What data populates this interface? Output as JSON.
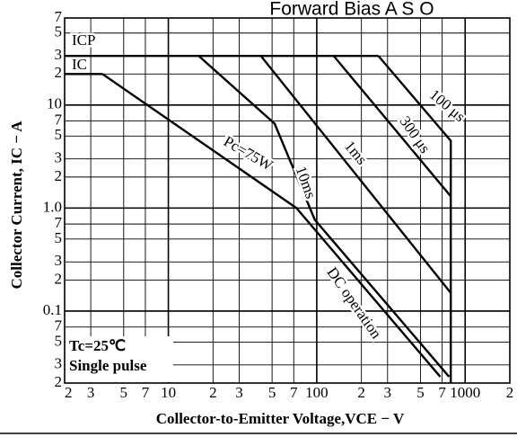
{
  "chart_data": {
    "type": "line",
    "title": "Forward Bias A S O",
    "xlabel": "Collector-to-Emitter Voltage,VCE − V",
    "ylabel": "Collector Current, IC − A",
    "xscale": "log",
    "yscale": "log",
    "grid": true,
    "color": "#000000",
    "xlim": [
      2,
      2000
    ],
    "ylim": [
      0.02,
      70
    ],
    "xticks": [
      2,
      3,
      5,
      7,
      10,
      {
        "value": 20,
        "label": "2"
      },
      {
        "value": 30,
        "label": "3"
      },
      {
        "value": 50,
        "label": "5"
      },
      {
        "value": 70,
        "label": "7"
      },
      100,
      {
        "value": 200,
        "label": "2"
      },
      {
        "value": 300,
        "label": "3"
      },
      {
        "value": 500,
        "label": "5"
      },
      {
        "value": 700,
        "label": "7"
      },
      1000,
      {
        "value": 2000,
        "label": "2"
      }
    ],
    "yticks": [
      {
        "value": 0.02,
        "label": "2"
      },
      {
        "value": 0.03,
        "label": "3"
      },
      {
        "value": 0.05,
        "label": "5"
      },
      {
        "value": 0.07,
        "label": "7"
      },
      0.1,
      {
        "value": 0.2,
        "label": "2"
      },
      {
        "value": 0.3,
        "label": "3"
      },
      {
        "value": 0.5,
        "label": "5"
      },
      {
        "value": 0.7,
        "label": "7"
      },
      {
        "value": 1,
        "label": "1.0"
      },
      2,
      3,
      5,
      7,
      10,
      {
        "value": 20,
        "label": "2"
      },
      {
        "value": 30,
        "label": "3"
      },
      {
        "value": 50,
        "label": "5"
      },
      {
        "value": 70,
        "label": "7"
      }
    ],
    "series": [
      {
        "name": "ICP",
        "color": "#000000",
        "x": [
          2,
          260
        ],
        "values": [
          30,
          30
        ]
      },
      {
        "name": "100 μs",
        "color": "#000000",
        "x": [
          260,
          800,
          800
        ],
        "values": [
          30,
          4.5,
          0.02
        ]
      },
      {
        "name": "300 μs",
        "color": "#000000",
        "x": [
          130,
          800
        ],
        "values": [
          30,
          1.3
        ]
      },
      {
        "name": "1ms",
        "color": "#000000",
        "x": [
          42,
          800
        ],
        "values": [
          30,
          0.15
        ]
      },
      {
        "name": "10ms",
        "color": "#000000",
        "x": [
          16,
          52,
          97,
          780
        ],
        "values": [
          30,
          6.6,
          0.77,
          0.023
        ]
      },
      {
        "name": "IC",
        "color": "#000000",
        "x": [
          2,
          3.6
        ],
        "values": [
          20,
          20
        ]
      },
      {
        "name": "Pc=75W",
        "color": "#000000",
        "x": [
          3.6,
          73
        ],
        "values": [
          20,
          1
        ]
      },
      {
        "name": "DC operation",
        "color": "#000000",
        "x": [
          73,
          680
        ],
        "values": [
          1,
          0.023
        ]
      }
    ],
    "annotations": [
      "Tc=25℃",
      "Single pulse"
    ]
  }
}
